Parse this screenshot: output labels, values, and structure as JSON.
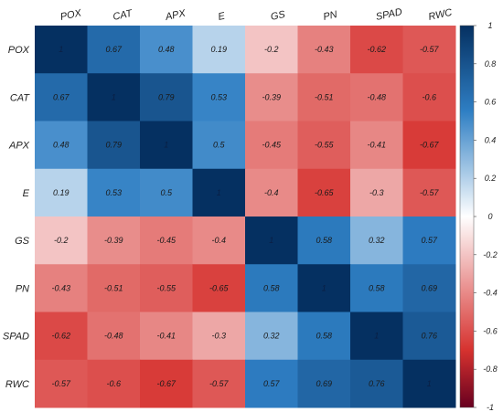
{
  "chart_data": {
    "type": "heatmap",
    "title": "",
    "variables": [
      "POX",
      "CAT",
      "APX",
      "E",
      "GS",
      "PN",
      "SPAD",
      "RWC"
    ],
    "matrix": [
      [
        1,
        0.67,
        0.48,
        0.19,
        -0.2,
        -0.43,
        -0.62,
        -0.57
      ],
      [
        0.67,
        1,
        0.79,
        0.53,
        -0.39,
        -0.51,
        -0.48,
        -0.6
      ],
      [
        0.48,
        0.79,
        1,
        0.5,
        -0.45,
        -0.55,
        -0.41,
        -0.67
      ],
      [
        0.19,
        0.53,
        0.5,
        1,
        -0.4,
        -0.65,
        -0.3,
        -0.57
      ],
      [
        -0.2,
        -0.39,
        -0.45,
        -0.4,
        1,
        0.58,
        0.32,
        0.57
      ],
      [
        -0.43,
        -0.51,
        -0.55,
        -0.65,
        0.58,
        1,
        0.58,
        0.69
      ],
      [
        -0.62,
        -0.48,
        -0.41,
        -0.3,
        0.32,
        0.58,
        1,
        0.76
      ],
      [
        -0.57,
        -0.6,
        -0.67,
        -0.57,
        0.57,
        0.69,
        0.76,
        1
      ]
    ],
    "cell_labels": [
      [
        "1",
        "0.67",
        "0.48",
        "0.19",
        "-0.2",
        "-0.43",
        "-0.62",
        "-0.57"
      ],
      [
        "0.67",
        "1",
        "0.79",
        "0.53",
        "-0.39",
        "-0.51",
        "-0.48",
        "-0.6"
      ],
      [
        "0.48",
        "0.79",
        "1",
        "0.5",
        "-0.45",
        "-0.55",
        "-0.41",
        "-0.67"
      ],
      [
        "0.19",
        "0.53",
        "0.5",
        "1",
        "-0.4",
        "-0.65",
        "-0.3",
        "-0.57"
      ],
      [
        "-0.2",
        "-0.39",
        "-0.45",
        "-0.4",
        "1",
        "0.58",
        "0.32",
        "0.57"
      ],
      [
        "-0.43",
        "-0.51",
        "-0.55",
        "-0.65",
        "0.58",
        "1",
        "0.58",
        "0.69"
      ],
      [
        "-0.62",
        "-0.48",
        "-0.41",
        "-0.3",
        "0.32",
        "0.58",
        "1",
        "0.76"
      ],
      [
        "-0.57",
        "-0.6",
        "-0.67",
        "-0.57",
        "0.57",
        "0.69",
        "0.76",
        "1"
      ]
    ],
    "colorbar": {
      "range": [
        -1,
        1
      ],
      "ticks": [
        "1",
        "0.8",
        "0.6",
        "0.4",
        "0.2",
        "0",
        "-0.2",
        "-0.4",
        "-0.6",
        "-0.8",
        "-1"
      ]
    },
    "colors": {
      "negative_extreme": "#67001f",
      "negative_strong": "#d6322f",
      "neutral": "#ffffff",
      "positive_strong": "#2f7fc4",
      "positive_extreme": "#053061"
    }
  }
}
